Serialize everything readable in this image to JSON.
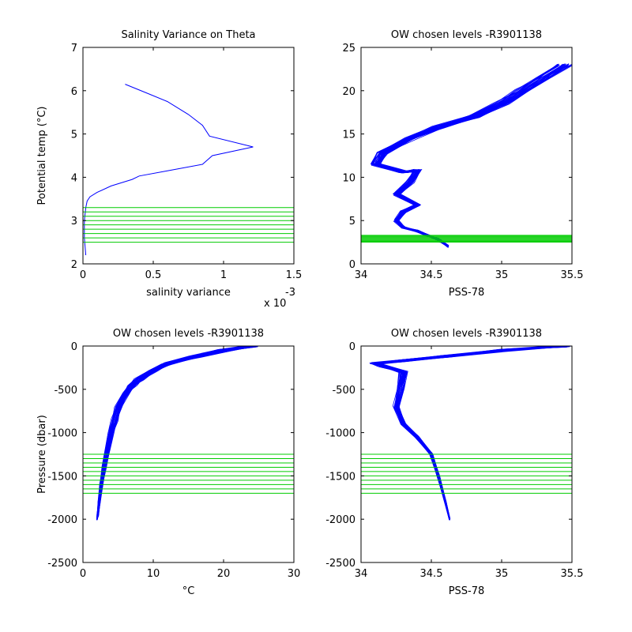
{
  "chart_data": [
    {
      "type": "line",
      "title": "Salinity Variance on Theta",
      "xlabel": "salinity variance",
      "ylabel": "Potential temp (°C)",
      "x_multiplier": "x 10",
      "x_multiplier_exp": "-3",
      "xlim": [
        0,
        1.5
      ],
      "ylim": [
        2,
        7
      ],
      "xticks": [
        0,
        0.5,
        1,
        1.5
      ],
      "xtick_labels": [
        "0",
        "0.5",
        "1",
        "1.5"
      ],
      "yticks": [
        2,
        3,
        4,
        5,
        6,
        7
      ],
      "ytick_labels": [
        "2",
        "3",
        "4",
        "5",
        "6",
        "7"
      ],
      "series": [
        {
          "color": "#0000ff",
          "x": [
            0.3,
            0.45,
            0.6,
            0.75,
            0.85,
            0.9,
            1.21,
            0.92,
            0.85,
            0.6,
            0.4,
            0.35,
            0.2,
            0.1,
            0.05,
            0.03,
            0.02,
            0.01,
            0.01,
            0.02
          ],
          "y": [
            6.15,
            5.95,
            5.75,
            5.45,
            5.2,
            4.95,
            4.7,
            4.5,
            4.3,
            4.15,
            4.03,
            3.95,
            3.8,
            3.65,
            3.55,
            3.45,
            3.3,
            3.0,
            2.6,
            2.2
          ]
        }
      ],
      "hlines": {
        "color": "#00cc00",
        "y": [
          2.5,
          2.6,
          2.7,
          2.8,
          2.9,
          3.0,
          3.1,
          3.2,
          3.3
        ]
      }
    },
    {
      "type": "line",
      "title": "OW chosen levels -R3901138",
      "xlabel": "PSS-78",
      "ylabel": "",
      "xlim": [
        34,
        35.5
      ],
      "ylim": [
        0,
        25
      ],
      "xticks": [
        34,
        34.5,
        35,
        35.5
      ],
      "xtick_labels": [
        "34",
        "34.5",
        "35",
        "35.5"
      ],
      "yticks": [
        0,
        5,
        10,
        15,
        20,
        25
      ],
      "ytick_labels": [
        "0",
        "5",
        "10",
        "15",
        "20",
        "25"
      ],
      "series": [
        {
          "color": "#0000ff",
          "x": [
            35.45,
            35.3,
            35.15,
            35.0,
            34.8,
            34.55,
            34.35,
            34.15,
            34.1,
            34.3,
            34.4,
            34.35,
            34.25,
            34.4,
            34.3,
            34.25,
            34.3,
            34.4,
            34.55,
            34.62
          ],
          "y": [
            23.0,
            21.5,
            20.0,
            18.5,
            17.0,
            15.8,
            14.5,
            12.8,
            11.5,
            10.6,
            10.8,
            9.5,
            8.0,
            6.8,
            6.0,
            5.0,
            4.2,
            3.8,
            2.8,
            2.0
          ]
        }
      ],
      "hlines": {
        "color": "#00cc00",
        "y": [
          2.5,
          2.6,
          2.7,
          2.8,
          2.9,
          3.0,
          3.1,
          3.2,
          3.3
        ]
      }
    },
    {
      "type": "line",
      "title": "OW chosen levels -R3901138",
      "xlabel": "°C",
      "ylabel": "Pressure (dbar)",
      "xlim": [
        0,
        30
      ],
      "ylim": [
        -2500,
        0
      ],
      "xticks": [
        0,
        10,
        20,
        30
      ],
      "xtick_labels": [
        "0",
        "10",
        "20",
        "30"
      ],
      "yticks": [
        -2500,
        -2000,
        -1500,
        -1000,
        -500,
        0
      ],
      "ytick_labels": [
        "-2500",
        "-2000",
        "-1500",
        "-1000",
        "-500",
        "0"
      ],
      "series": [
        {
          "color": "#0000ff",
          "x": [
            24,
            20,
            16,
            12,
            10,
            8,
            7,
            6,
            5,
            4.5,
            4,
            3.5,
            3,
            2.6,
            2.3,
            2.1,
            2.0
          ],
          "y": [
            0,
            -50,
            -120,
            -200,
            -280,
            -380,
            -450,
            -550,
            -700,
            -850,
            -1000,
            -1200,
            -1400,
            -1600,
            -1800,
            -1950,
            -2000
          ]
        }
      ],
      "hlines": {
        "color": "#00cc00",
        "y": [
          -1250,
          -1300,
          -1350,
          -1400,
          -1450,
          -1500,
          -1550,
          -1600,
          -1650,
          -1700
        ]
      }
    },
    {
      "type": "line",
      "title": "OW chosen levels -R3901138",
      "xlabel": "PSS-78",
      "ylabel": "",
      "xlim": [
        34,
        35.5
      ],
      "ylim": [
        -2500,
        0
      ],
      "xticks": [
        34,
        34.5,
        35,
        35.5
      ],
      "xtick_labels": [
        "34",
        "34.5",
        "35",
        "35.5"
      ],
      "yticks": [
        -2500,
        -2000,
        -1500,
        -1000,
        -500,
        0
      ],
      "ytick_labels": [
        "-2500",
        "-2000",
        "-1500",
        "-1000",
        "-500",
        "0"
      ],
      "series": [
        {
          "color": "#0000ff",
          "x": [
            35.45,
            35.0,
            34.6,
            34.3,
            34.1,
            34.15,
            34.3,
            34.28,
            34.25,
            34.3,
            34.4,
            34.5,
            34.55,
            34.6,
            34.63
          ],
          "y": [
            0,
            -50,
            -120,
            -170,
            -200,
            -230,
            -300,
            -500,
            -700,
            -900,
            -1050,
            -1250,
            -1500,
            -1800,
            -2000
          ]
        }
      ],
      "hlines": {
        "color": "#00cc00",
        "y": [
          -1250,
          -1300,
          -1350,
          -1400,
          -1450,
          -1500,
          -1550,
          -1600,
          -1650,
          -1700
        ]
      }
    }
  ]
}
